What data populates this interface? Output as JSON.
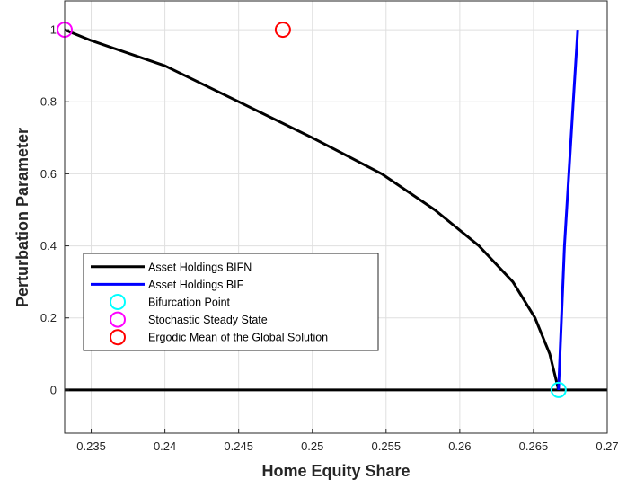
{
  "chart_data": {
    "type": "line",
    "xlabel": "Home Equity Share",
    "ylabel": "Perturbation Parameter",
    "xlim": [
      0.2332,
      0.27
    ],
    "ylim": [
      -0.12,
      1.08
    ],
    "xticks": [
      0.235,
      0.24,
      0.245,
      0.25,
      0.255,
      0.26,
      0.265,
      0.27
    ],
    "xtick_labels": [
      "0.235",
      "0.24",
      "0.245",
      "0.25",
      "0.255",
      "0.26",
      "0.265",
      "0.27"
    ],
    "yticks": [
      0,
      0.2,
      0.4,
      0.6,
      0.8,
      1
    ],
    "ytick_labels": [
      "0",
      "0.2",
      "0.4",
      "0.6",
      "0.8",
      "1"
    ],
    "grid": true,
    "legend_position": "lower-left",
    "series": [
      {
        "name": "Asset Holdings BIFN",
        "kind": "line",
        "color": "#000000",
        "x": [
          0.2332,
          0.235,
          0.24,
          0.245,
          0.25,
          0.2547,
          0.2583,
          0.2613,
          0.2636,
          0.2651,
          0.2661,
          0.2667
        ],
        "y": [
          1.0,
          0.97,
          0.9,
          0.8,
          0.7,
          0.6,
          0.5,
          0.4,
          0.3,
          0.2,
          0.1,
          0.0
        ]
      },
      {
        "name": "",
        "kind": "line",
        "color": "#000000",
        "x": [
          0.2332,
          0.27
        ],
        "y": [
          0,
          0
        ]
      },
      {
        "name": "Asset Holdings BIF",
        "kind": "line",
        "color": "#0000ff",
        "x": [
          0.2667,
          0.2669,
          0.2671,
          0.2674,
          0.2677,
          0.268
        ],
        "y": [
          0.0,
          0.2,
          0.4,
          0.6,
          0.8,
          1.0
        ]
      },
      {
        "name": "Bifurcation Point",
        "kind": "marker",
        "color": "#00ffff",
        "x": [
          0.2667
        ],
        "y": [
          0
        ]
      },
      {
        "name": "Stochastic Steady State",
        "kind": "marker",
        "color": "#ff00ff",
        "x": [
          0.2332
        ],
        "y": [
          1
        ]
      },
      {
        "name": "Ergodic Mean of the Global Solution",
        "kind": "marker",
        "color": "#ff0000",
        "x": [
          0.248
        ],
        "y": [
          1
        ]
      }
    ]
  }
}
